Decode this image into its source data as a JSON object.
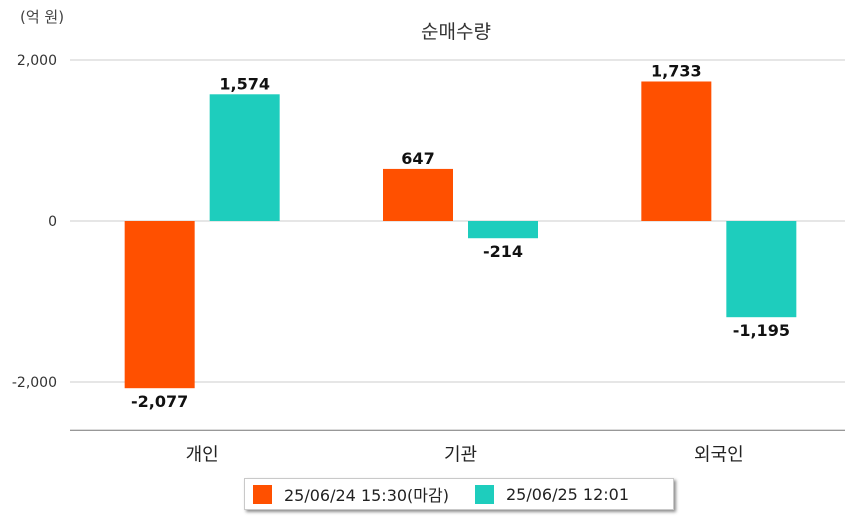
{
  "chart_data": {
    "type": "bar",
    "title": "순매수량",
    "unit_label": "(억 원)",
    "categories": [
      "개인",
      "기관",
      "외국인"
    ],
    "series": [
      {
        "name": "25/06/24 15:30(마감)",
        "color": "#ff5000",
        "values": [
          -2077,
          647,
          1733
        ]
      },
      {
        "name": "25/06/25 12:01",
        "color": "#1ecdbd",
        "values": [
          1574,
          -214,
          -1195
        ]
      }
    ],
    "yticks": [
      2000,
      0,
      -2000
    ],
    "ytick_labels": [
      "2,000",
      "0",
      "-2,000"
    ],
    "ylim": [
      -2600,
      2000
    ],
    "grid": true,
    "legend_position": "bottom"
  }
}
